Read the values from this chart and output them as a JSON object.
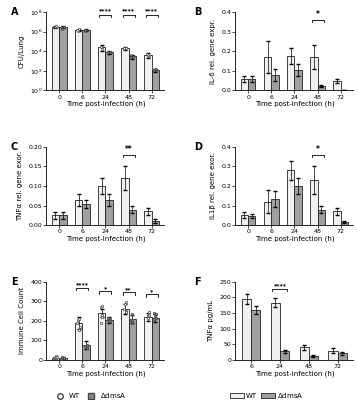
{
  "panel_A": {
    "timepoints": [
      0,
      6,
      24,
      48,
      72
    ],
    "WT_bars": [
      3000000,
      1500000,
      25000,
      20000,
      4000
    ],
    "dmsA_bars": [
      3000000,
      1500000,
      8000,
      3000,
      120
    ],
    "WT_err": [
      500000,
      300000,
      15000,
      8000,
      2000
    ],
    "dmsA_err": [
      500000,
      300000,
      3000,
      1500,
      50
    ],
    "ylabel": "CFU/Lung",
    "xlabel": "Time post-infection (h)",
    "ylim": [
      1,
      100000000
    ],
    "sig_times": [
      24,
      48,
      72
    ],
    "sig_label": "****"
  },
  "panel_B": {
    "timepoints": [
      0,
      6,
      24,
      48,
      72
    ],
    "WT_bars": [
      0.06,
      0.17,
      0.175,
      0.17,
      0.05
    ],
    "dmsA_bars": [
      0.06,
      0.08,
      0.105,
      0.02,
      0.002
    ],
    "WT_err": [
      0.015,
      0.08,
      0.04,
      0.06,
      0.01
    ],
    "dmsA_err": [
      0.015,
      0.03,
      0.03,
      0.005,
      0.001
    ],
    "ylabel": "IL-6 rel. gene expr.",
    "xlabel": "Time post-infection (h)",
    "ylim": [
      0,
      0.4
    ],
    "yticks": [
      0.0,
      0.1,
      0.2,
      0.3,
      0.4
    ],
    "sig_time": 48,
    "sig": "*"
  },
  "panel_C": {
    "timepoints": [
      0,
      6,
      24,
      48,
      72
    ],
    "WT_bars": [
      0.025,
      0.065,
      0.1,
      0.12,
      0.035
    ],
    "dmsA_bars": [
      0.025,
      0.055,
      0.065,
      0.04,
      0.01
    ],
    "WT_err": [
      0.008,
      0.015,
      0.02,
      0.03,
      0.01
    ],
    "dmsA_err": [
      0.008,
      0.01,
      0.015,
      0.01,
      0.005
    ],
    "ylabel": "TNFα rel. gene exor.",
    "xlabel": "Time post-infection (h)",
    "ylim": [
      0,
      0.2
    ],
    "yticks": [
      0.0,
      0.05,
      0.1,
      0.15,
      0.2
    ],
    "sig_time": 48,
    "sig": "**"
  },
  "panel_D": {
    "timepoints": [
      0,
      6,
      24,
      48,
      72
    ],
    "WT_bars": [
      0.05,
      0.12,
      0.28,
      0.23,
      0.07
    ],
    "dmsA_bars": [
      0.045,
      0.135,
      0.2,
      0.08,
      0.015
    ],
    "WT_err": [
      0.015,
      0.06,
      0.05,
      0.07,
      0.02
    ],
    "dmsA_err": [
      0.01,
      0.04,
      0.04,
      0.02,
      0.005
    ],
    "ylabel": "IL1β rel. gene exor.",
    "xlabel": "Time post-infection (h)",
    "ylim": [
      0,
      0.4
    ],
    "yticks": [
      0.0,
      0.1,
      0.2,
      0.3,
      0.4
    ],
    "sig_time": 48,
    "sig": "*"
  },
  "panel_E": {
    "timepoints": [
      0,
      6,
      24,
      48,
      72
    ],
    "WT_bars": [
      10,
      190,
      240,
      260,
      220
    ],
    "dmsA_bars": [
      12,
      75,
      205,
      210,
      215
    ],
    "WT_err": [
      3,
      30,
      20,
      25,
      20
    ],
    "dmsA_err": [
      3,
      20,
      15,
      20,
      20
    ],
    "ylabel": "Immune Cell Count",
    "xlabel": "Time post-infection (h)",
    "ylim": [
      0,
      400
    ],
    "yticks": [
      0,
      100,
      200,
      300,
      400
    ],
    "sig_times": [
      6,
      24,
      48,
      72
    ],
    "sig_labels": [
      "****",
      "*",
      "**",
      "*"
    ]
  },
  "panel_F": {
    "timepoints": [
      6,
      24,
      48,
      72
    ],
    "WT_bars": [
      195,
      183,
      40,
      30
    ],
    "dmsA_bars": [
      160,
      28,
      12,
      22
    ],
    "WT_err": [
      15,
      15,
      8,
      8
    ],
    "dmsA_err": [
      12,
      5,
      4,
      5
    ],
    "ylabel": "TNFα pg/mL",
    "xlabel": "Time post-infection (h)",
    "ylim": [
      0,
      250
    ],
    "yticks": [
      0,
      50,
      100,
      150,
      200,
      250
    ],
    "sig_time": 24,
    "sig": "****"
  },
  "WT_color": "#f0f0f0",
  "dmsA_color": "#a0a0a0",
  "bar_edge_color": "#222222"
}
